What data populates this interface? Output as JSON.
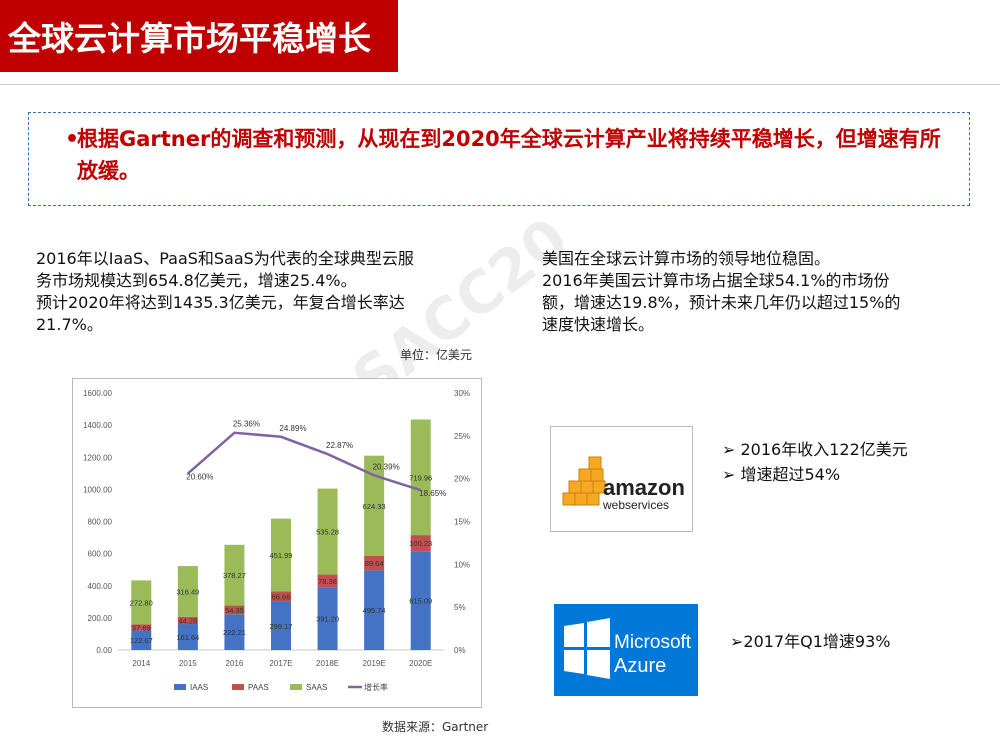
{
  "page": {
    "title": "全球云计算市场平稳增长",
    "callout": {
      "bullet": "•",
      "text": "根据Gartner的调查和预测，从现在到2020年全球云计算产业将持续平稳增长，但增速有所放缓。"
    },
    "left_paragraph": [
      "2016年以IaaS、PaaS和SaaS为代表的全球典型云服",
      "务市场规模达到654.8亿美元，增速25.4%。",
      "预计2020年将达到1435.3亿美元，年复合增长率达",
      "21.7%。"
    ],
    "right_paragraph": [
      "美国在全球云计算市场的领导地位稳固。",
      "2016年美国云计算市场占据全球54.1%的市场份",
      "额，增速达19.8%，预计未来几年仍以超过15%的",
      "速度快速增长。"
    ],
    "unit_note": "单位：亿美元",
    "source_note": "数据来源：Gartner",
    "watermark": "SACC20",
    "aws": {
      "logo_word": "amazon",
      "logo_sub": "webservices",
      "facts": [
        "➢ 2016年收入122亿美元",
        "➢ 增速超过54%"
      ]
    },
    "azure": {
      "logo_line1": "Microsoft",
      "logo_line2": "Azure",
      "facts": [
        "➢2017年Q1增速93%"
      ]
    },
    "colors": {
      "title_bg": "#c00000",
      "accent_red": "#c00000",
      "callout_border": "#3b6fb6",
      "iaas": "#4472c4",
      "paas": "#c0504d",
      "saas": "#9bbb59",
      "growth": "#8064a2",
      "aws_orange": "#f7a823",
      "azure_blue": "#0078d7"
    },
    "icons": {
      "aws": "aws-cubes-icon",
      "azure": "windows-logo-icon"
    }
  },
  "chart_data": {
    "type": "bar",
    "stacked": true,
    "categories": [
      "2014",
      "2015",
      "2016",
      "2017E",
      "2018E",
      "2019E",
      "2020E"
    ],
    "series": [
      {
        "name": "IAAS",
        "color": "#4472c4",
        "values": [
          122.67,
          161.64,
          222.21,
          299.17,
          391.2,
          495.74,
          615.09
        ],
        "labels": [
          "122.67",
          "161.64",
          "222.21",
          "299.17",
          "391.20",
          "495.74",
          "615.09"
        ]
      },
      {
        "name": "PAAS",
        "color": "#c0504d",
        "values": [
          37.69,
          44.28,
          54.35,
          66.66,
          78.38,
          89.64,
          100.23
        ],
        "labels": [
          "37.69",
          "44.28",
          "54.35",
          "66.66",
          "78.38",
          "89.64",
          "100.23"
        ]
      },
      {
        "name": "SAAS",
        "color": "#9bbb59",
        "values": [
          272.8,
          316.49,
          378.27,
          451.99,
          535.28,
          624.33,
          719.96
        ],
        "labels": [
          "272.80",
          "316.49",
          "378.27",
          "451.99",
          "535.28",
          "624.33",
          "719.96"
        ]
      }
    ],
    "line_series": {
      "name": "增长率",
      "color": "#8064a2",
      "x_start_index": 1,
      "values": [
        20.6,
        25.36,
        24.89,
        22.87,
        20.39,
        18.65
      ],
      "labels": [
        "20.60%",
        "25.36%",
        "24.89%",
        "22.87%",
        "20.39%",
        "18.65%"
      ]
    },
    "ylim": [
      0,
      1600
    ],
    "yticks": [
      "0.00",
      "200.00",
      "400.00",
      "600.00",
      "800.00",
      "1000.00",
      "1200.00",
      "1400.00",
      "1600.00"
    ],
    "y2lim": [
      0,
      30
    ],
    "y2ticks": [
      "0%",
      "5%",
      "10%",
      "15%",
      "20%",
      "25%",
      "30%"
    ],
    "legend_position": "bottom",
    "grid": false
  }
}
